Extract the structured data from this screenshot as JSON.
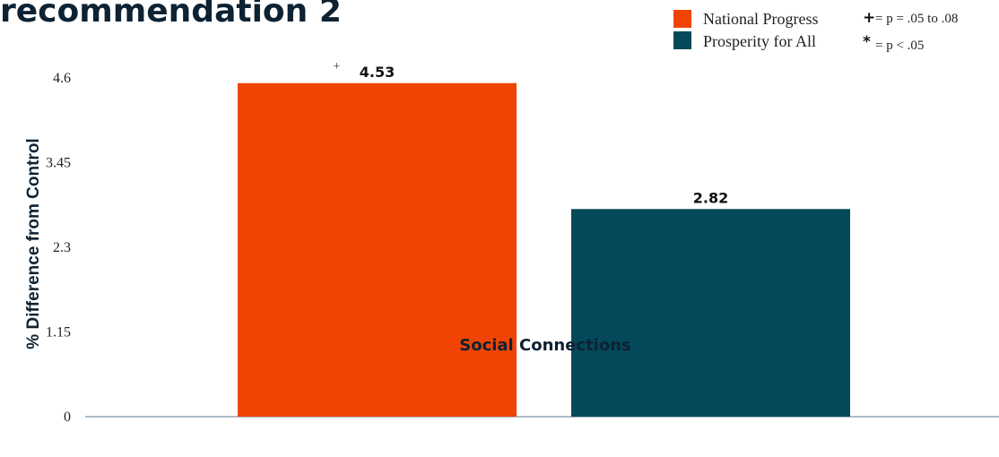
{
  "chart_data": {
    "type": "bar",
    "title": "recommendation 2",
    "ylabel": "% Difference from Control",
    "xlabel": "Social Connections",
    "categories": [
      "Social Connections"
    ],
    "series": [
      {
        "name": "National Progress",
        "values": [
          4.53
        ],
        "color": "#f04405",
        "value_label": "4.53",
        "significance": "+"
      },
      {
        "name": "Prosperity for All",
        "values": [
          2.82
        ],
        "color": "#03495a",
        "value_label": "2.82",
        "significance": ""
      }
    ],
    "yticks": [
      "0",
      "1.15",
      "2.3",
      "3.45",
      "4.6"
    ],
    "ylim": [
      0,
      4.6
    ],
    "grid": false,
    "legend_position": "top-right",
    "notes": [
      {
        "symbol": "+",
        "text": "= p = .05 to .08"
      },
      {
        "symbol": "*",
        "text": "= p < .05"
      }
    ]
  }
}
